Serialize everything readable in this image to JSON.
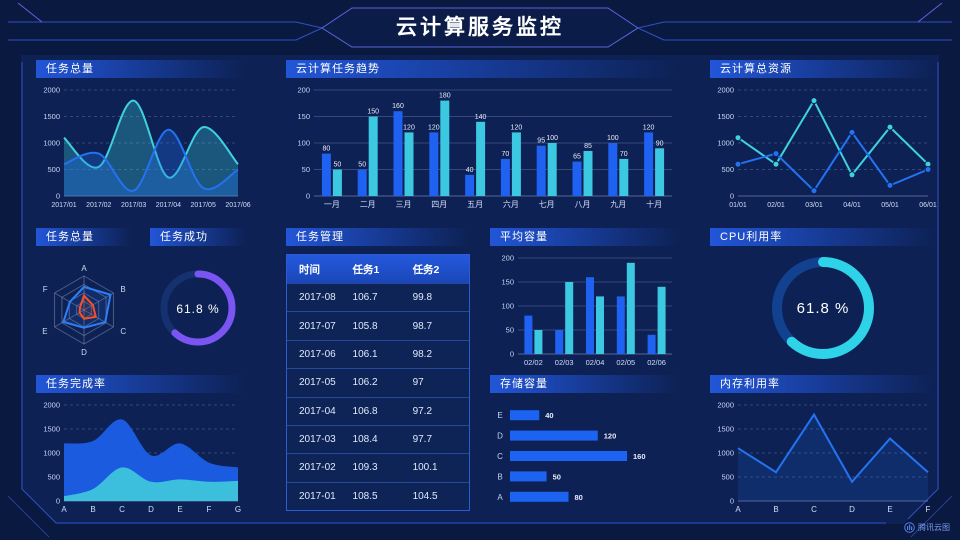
{
  "header": {
    "title": "云计算服务监控"
  },
  "brand": {
    "label": "腾讯云图"
  },
  "theme": {
    "background": "#0a1940",
    "inner_background": "#0d2154",
    "frame_line": "#3050c8",
    "title_bar_gradient": "#2256d8",
    "axis_label": "#c9d4f2",
    "series_blue": "#1f61f0",
    "series_cyan": "#3bc8e0",
    "accent_purple": "#7a55f2",
    "accent_orange": "#f4502a"
  },
  "chart_data": [
    {
      "id": "tasks_total",
      "type": "line",
      "title": "任务总量",
      "smooth": true,
      "grid": "dashed",
      "x": [
        "2017/01",
        "2017/02",
        "2017/03",
        "2017/04",
        "2017/05",
        "2017/06"
      ],
      "ylim": [
        0,
        2000
      ],
      "yticks": [
        0,
        500,
        1000,
        1500,
        2000
      ],
      "xfont": 7,
      "series": [
        {
          "name": "cyan",
          "color": "#3dd2de",
          "values": [
            1100,
            550,
            1800,
            350,
            1300,
            600
          ],
          "area": true,
          "area_opacity": 0.3
        },
        {
          "name": "blue",
          "color": "#2472f2",
          "values": [
            600,
            800,
            100,
            1250,
            150,
            500
          ],
          "area": true,
          "area_opacity": 0.3
        }
      ]
    },
    {
      "id": "task_trend",
      "type": "bar",
      "title": "云计算任务趋势",
      "grid": "solid",
      "bar_labels": true,
      "x": [
        "一月",
        "二月",
        "三月",
        "四月",
        "五月",
        "六月",
        "七月",
        "八月",
        "九月",
        "十月"
      ],
      "ylim": [
        0,
        200
      ],
      "yticks": [
        0,
        50,
        100,
        150,
        200
      ],
      "xfont": 8,
      "series": [
        {
          "name": "blue",
          "color": "#1f61f0",
          "values": [
            80,
            50,
            160,
            120,
            40,
            70,
            95,
            65,
            100,
            120
          ]
        },
        {
          "name": "cyan",
          "color": "#3bc8e0",
          "values": [
            50,
            150,
            120,
            180,
            140,
            120,
            100,
            85,
            70,
            90
          ]
        }
      ]
    },
    {
      "id": "total_resources",
      "type": "line",
      "title": "云计算总资源",
      "smooth": false,
      "grid": "dashed",
      "x": [
        "01/01",
        "02/01",
        "03/01",
        "04/01",
        "05/01",
        "06/01"
      ],
      "ylim": [
        0,
        2000
      ],
      "yticks": [
        0,
        500,
        1000,
        1500,
        2000
      ],
      "xfont": 7,
      "series": [
        {
          "name": "cyan",
          "color": "#3dd2de",
          "values": [
            1100,
            600,
            1800,
            400,
            1300,
            600
          ],
          "markers": true
        },
        {
          "name": "blue",
          "color": "#2472f2",
          "values": [
            600,
            800,
            100,
            1200,
            200,
            500
          ],
          "markers": true
        }
      ]
    },
    {
      "id": "tasks_radar",
      "type": "radar",
      "title": "任务总量",
      "indicators": [
        "A",
        "B",
        "C",
        "D",
        "E",
        "F"
      ],
      "max": 100,
      "series": [
        {
          "name": "blue",
          "color": "#2e7ef5",
          "values": [
            68,
            90,
            72,
            52,
            70,
            48
          ]
        },
        {
          "name": "orange",
          "color": "#f4502a",
          "values": [
            42,
            30,
            40,
            26,
            15,
            14
          ]
        }
      ]
    },
    {
      "id": "task_success",
      "type": "donut",
      "title": "任务成功",
      "value": 61.8,
      "value_label": "61.8 %",
      "color": "#7a55f2",
      "track": "#15316f"
    },
    {
      "id": "task_table",
      "type": "table",
      "title": "任务管理",
      "columns": [
        "时间",
        "任务1",
        "任务2"
      ],
      "rows": [
        [
          "2017-08",
          "106.7",
          "99.8"
        ],
        [
          "2017-07",
          "105.8",
          "98.7"
        ],
        [
          "2017-06",
          "106.1",
          "98.2"
        ],
        [
          "2017-05",
          "106.2",
          "97"
        ],
        [
          "2017-04",
          "106.8",
          "97.2"
        ],
        [
          "2017-03",
          "108.4",
          "97.7"
        ],
        [
          "2017-02",
          "109.3",
          "100.1"
        ],
        [
          "2017-01",
          "108.5",
          "104.5"
        ]
      ]
    },
    {
      "id": "avg_capacity",
      "type": "bar",
      "title": "平均容量",
      "grid": "solid",
      "x": [
        "02/02",
        "02/03",
        "02/04",
        "02/05",
        "02/06"
      ],
      "ylim": [
        0,
        200
      ],
      "yticks": [
        0,
        50,
        100,
        150,
        200
      ],
      "xfont": 7.5,
      "series": [
        {
          "name": "blue",
          "color": "#1f61f0",
          "values": [
            80,
            50,
            160,
            120,
            40
          ]
        },
        {
          "name": "cyan",
          "color": "#3bc8e0",
          "values": [
            50,
            150,
            120,
            190,
            140
          ]
        }
      ]
    },
    {
      "id": "cpu_usage",
      "type": "donut",
      "title": "CPU利用率",
      "value": 61.8,
      "value_label": "61.8 %",
      "color": "#2ed3e8",
      "track": "#11418f"
    },
    {
      "id": "completion_rate",
      "type": "line",
      "title": "任务完成率",
      "smooth": true,
      "grid": "dashed",
      "x": [
        "A",
        "B",
        "C",
        "D",
        "E",
        "F",
        "G"
      ],
      "ylim": [
        0,
        2000
      ],
      "yticks": [
        0,
        500,
        1000,
        1500,
        2000
      ],
      "xfont": 8,
      "series": [
        {
          "name": "blue",
          "color": "#1b5be0",
          "values": [
            1200,
            1250,
            1700,
            950,
            1200,
            800,
            700
          ],
          "area": true,
          "area_opacity": 1,
          "line": false
        },
        {
          "name": "cyan",
          "color": "#3bbfdd",
          "values": [
            100,
            250,
            700,
            400,
            450,
            400,
            420
          ],
          "area": true,
          "area_opacity": 1,
          "line": false
        }
      ]
    },
    {
      "id": "storage",
      "type": "hbar",
      "title": "存储容量",
      "categories": [
        "E",
        "D",
        "C",
        "B",
        "A"
      ],
      "values": [
        40,
        120,
        160,
        50,
        80
      ],
      "xmax": 175,
      "color": "#1b63f0"
    },
    {
      "id": "memory_usage",
      "type": "line",
      "title": "内存利用率",
      "smooth": false,
      "grid": "dashed",
      "x": [
        "A",
        "B",
        "C",
        "D",
        "E",
        "F"
      ],
      "ylim": [
        0,
        2000
      ],
      "yticks": [
        0,
        500,
        1000,
        1500,
        2000
      ],
      "xfont": 8,
      "series": [
        {
          "name": "blue",
          "color": "#2472f2",
          "values": [
            1100,
            600,
            1800,
            400,
            1300,
            600
          ],
          "area": true,
          "area_opacity": 0.15
        }
      ]
    }
  ]
}
